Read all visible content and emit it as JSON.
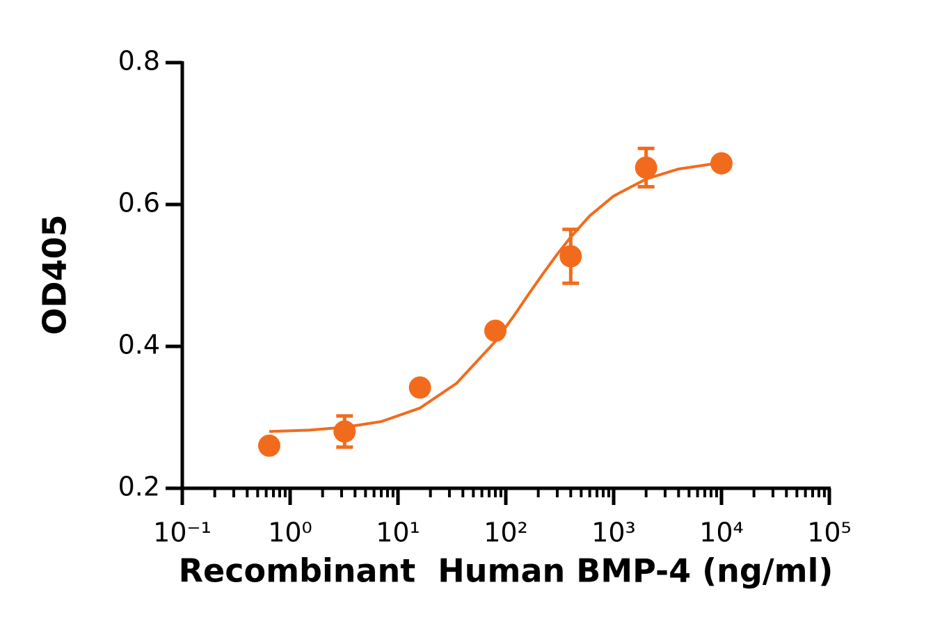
{
  "chart_data": {
    "type": "scatter",
    "x_label": "Recombinant  Human BMP-4 (ng/ml)",
    "y_label": "OD405",
    "xscale": "log",
    "xlim": [
      0.1,
      100000
    ],
    "xticks": [
      {
        "value": 0.1,
        "label": "10⁻¹"
      },
      {
        "value": 1,
        "label": "10⁰"
      },
      {
        "value": 10,
        "label": "10¹"
      },
      {
        "value": 100,
        "label": "10²"
      },
      {
        "value": 1000,
        "label": "10³"
      },
      {
        "value": 10000,
        "label": "10⁴"
      },
      {
        "value": 100000,
        "label": "10⁵"
      }
    ],
    "xminorticks": [
      0.2,
      0.3,
      0.4,
      0.5,
      0.6,
      0.7,
      0.8,
      0.9,
      2,
      3,
      4,
      5,
      6,
      7,
      8,
      9,
      20,
      30,
      40,
      50,
      60,
      70,
      80,
      90,
      200,
      300,
      400,
      500,
      600,
      700,
      800,
      900,
      2000,
      3000,
      4000,
      5000,
      6000,
      7000,
      8000,
      9000,
      20000,
      30000,
      40000,
      50000,
      60000,
      70000,
      80000,
      90000
    ],
    "ylim": [
      0.2,
      0.8
    ],
    "yticks": [
      0.2,
      0.4,
      0.6,
      0.8
    ],
    "grid": false,
    "series": [
      {
        "color": "#f26b1d",
        "x": [
          0.64,
          3.2,
          16,
          80,
          400,
          2000,
          10000
        ],
        "values": [
          0.26,
          0.28,
          0.342,
          0.422,
          0.527,
          0.652,
          0.658
        ],
        "errors": [
          null,
          0.022,
          null,
          null,
          0.038,
          0.027,
          null
        ]
      }
    ],
    "fit": {
      "color": "#f26b1d",
      "x": [
        0.64,
        1.5,
        3.2,
        7,
        16,
        35,
        80,
        120,
        160,
        220,
        300,
        400,
        600,
        1000,
        2000,
        4000,
        10000
      ],
      "values": [
        0.28,
        0.282,
        0.286,
        0.294,
        0.313,
        0.348,
        0.407,
        0.444,
        0.472,
        0.502,
        0.53,
        0.554,
        0.584,
        0.612,
        0.636,
        0.65,
        0.659
      ]
    }
  }
}
